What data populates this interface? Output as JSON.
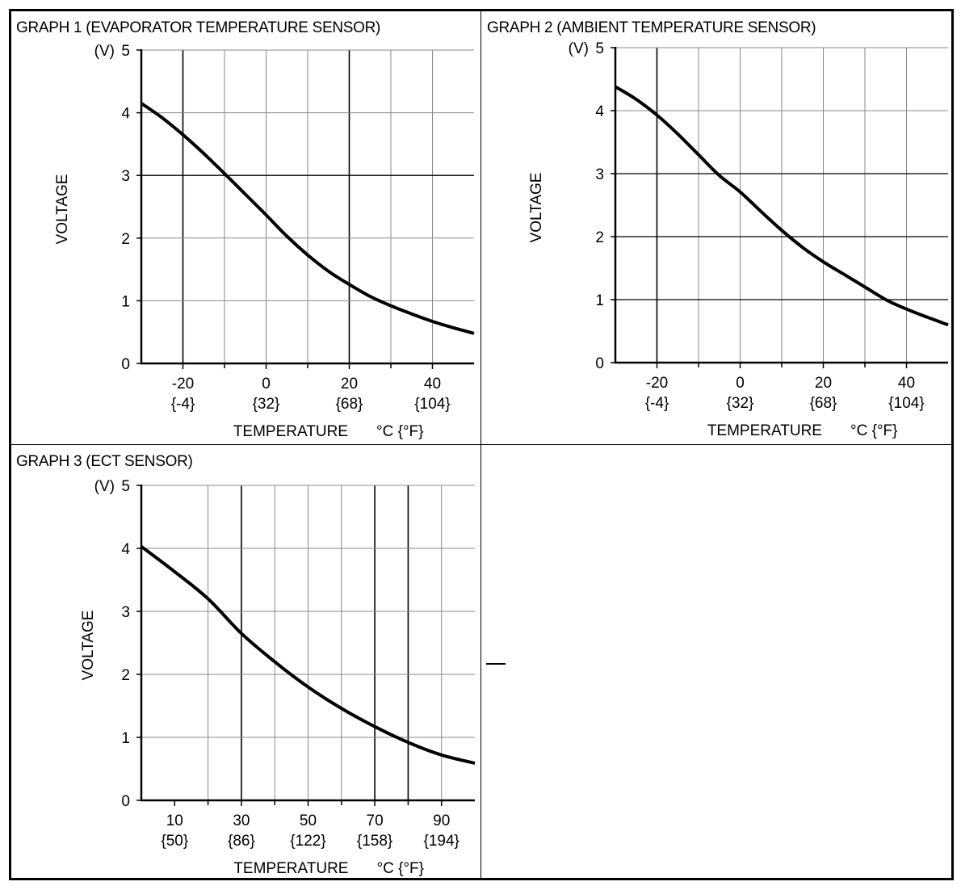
{
  "chart_data": [
    {
      "type": "line",
      "title": "GRAPH 1 (EVAPORATOR TEMPERATURE SENSOR)",
      "ylabel": "VOLTAGE",
      "yunit": "(V)",
      "xlabel": "TEMPERATURE",
      "xunit": "°C {°F}",
      "xlim": [
        -30,
        50
      ],
      "ylim": [
        0,
        5
      ],
      "yticks": [
        "0",
        "1",
        "2",
        "3",
        "4",
        "5"
      ],
      "xticks": [
        {
          "value": -20,
          "c": "-20",
          "f": "{-4}"
        },
        {
          "value": 0,
          "c": "0",
          "f": "{32}"
        },
        {
          "value": 20,
          "c": "20",
          "f": "{68}"
        },
        {
          "value": 40,
          "c": "40",
          "f": "{104}"
        }
      ],
      "grid": true,
      "series": [
        {
          "x": [
            -30,
            -25,
            -20,
            -15,
            -10,
            -5,
            0,
            5,
            10,
            15,
            20,
            25,
            30,
            35,
            40,
            45,
            50
          ],
          "y": [
            4.15,
            3.92,
            3.65,
            3.35,
            3.03,
            2.7,
            2.37,
            2.03,
            1.73,
            1.47,
            1.26,
            1.07,
            0.92,
            0.79,
            0.67,
            0.57,
            0.48
          ]
        }
      ]
    },
    {
      "type": "line",
      "title": "GRAPH 2 (AMBIENT TEMPERATURE SENSOR)",
      "ylabel": "VOLTAGE",
      "yunit": "(V)",
      "xlabel": "TEMPERATURE",
      "xunit": "°C {°F}",
      "xlim": [
        -30,
        50
      ],
      "ylim": [
        0,
        5
      ],
      "yticks": [
        "0",
        "1",
        "2",
        "3",
        "4",
        "5"
      ],
      "xticks": [
        {
          "value": -20,
          "c": "-20",
          "f": "{-4}"
        },
        {
          "value": 0,
          "c": "0",
          "f": "{32}"
        },
        {
          "value": 20,
          "c": "20",
          "f": "{68}"
        },
        {
          "value": 40,
          "c": "40",
          "f": "{104}"
        }
      ],
      "grid": true,
      "series": [
        {
          "x": [
            -30,
            -25,
            -20,
            -15,
            -10,
            -5,
            0,
            5,
            10,
            15,
            20,
            25,
            30,
            35,
            40,
            45,
            50
          ],
          "y": [
            4.38,
            4.18,
            3.93,
            3.63,
            3.3,
            2.97,
            2.71,
            2.4,
            2.1,
            1.83,
            1.6,
            1.4,
            1.2,
            1.0,
            0.85,
            0.72,
            0.6
          ]
        }
      ]
    },
    {
      "type": "line",
      "title": "GRAPH 3 (ECT SENSOR)",
      "ylabel": "VOLTAGE",
      "yunit": "(V)",
      "xlabel": "TEMPERATURE",
      "xunit": "°C {°F}",
      "xlim": [
        0,
        100
      ],
      "ylim": [
        0,
        5
      ],
      "yticks": [
        "0",
        "1",
        "2",
        "3",
        "4",
        "5"
      ],
      "xticks": [
        {
          "value": 10,
          "c": "10",
          "f": "{50}"
        },
        {
          "value": 30,
          "c": "30",
          "f": "{86}"
        },
        {
          "value": 50,
          "c": "50",
          "f": "{122}"
        },
        {
          "value": 70,
          "c": "70",
          "f": "{158}"
        },
        {
          "value": 90,
          "c": "90",
          "f": "{194}"
        }
      ],
      "grid": true,
      "series": [
        {
          "x": [
            0,
            10,
            20,
            30,
            40,
            50,
            60,
            70,
            80,
            90,
            100
          ],
          "y": [
            4.03,
            3.63,
            3.2,
            2.65,
            2.2,
            1.8,
            1.46,
            1.17,
            0.92,
            0.72,
            0.59
          ]
        }
      ]
    }
  ]
}
